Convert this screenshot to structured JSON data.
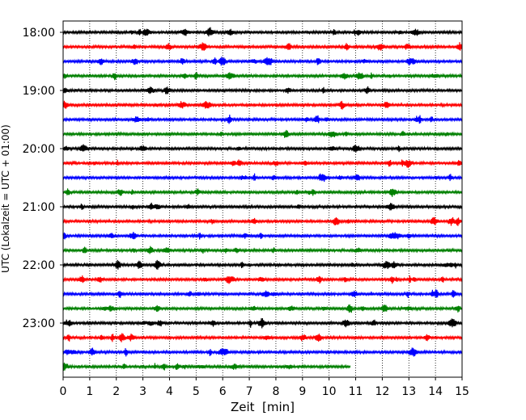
{
  "chart_data": {
    "type": "line",
    "title": "",
    "xlabel": "Zeit  [min]",
    "ylabel": "UTC (Lokalzeit = UTC + 01:00)",
    "xlim": [
      0,
      15
    ],
    "x_ticks": [
      "0",
      "1",
      "2",
      "3",
      "4",
      "5",
      "6",
      "7",
      "8",
      "9",
      "10",
      "11",
      "12",
      "13",
      "14",
      "15"
    ],
    "y_ticks": [
      "18:00",
      "19:00",
      "20:00",
      "21:00",
      "22:00",
      "23:00"
    ],
    "grid": "vertical dotted",
    "trace_interval_min": 15,
    "colors": [
      "#000000",
      "#ff0000",
      "#0000ff",
      "#008000"
    ],
    "series": [
      {
        "start": "18:00",
        "end_min": 15
      },
      {
        "start": "18:15",
        "end_min": 15
      },
      {
        "start": "18:30",
        "end_min": 15
      },
      {
        "start": "18:45",
        "end_min": 15
      },
      {
        "start": "19:00",
        "end_min": 15
      },
      {
        "start": "19:15",
        "end_min": 15
      },
      {
        "start": "19:30",
        "end_min": 15
      },
      {
        "start": "19:45",
        "end_min": 15
      },
      {
        "start": "20:00",
        "end_min": 15
      },
      {
        "start": "20:15",
        "end_min": 15
      },
      {
        "start": "20:30",
        "end_min": 15
      },
      {
        "start": "20:45",
        "end_min": 15
      },
      {
        "start": "21:00",
        "end_min": 15
      },
      {
        "start": "21:15",
        "end_min": 15
      },
      {
        "start": "21:30",
        "end_min": 15
      },
      {
        "start": "21:45",
        "end_min": 15
      },
      {
        "start": "22:00",
        "end_min": 15
      },
      {
        "start": "22:15",
        "end_min": 15
      },
      {
        "start": "22:30",
        "end_min": 15
      },
      {
        "start": "22:45",
        "end_min": 15
      },
      {
        "start": "23:00",
        "end_min": 15
      },
      {
        "start": "23:15",
        "end_min": 15
      },
      {
        "start": "23:30",
        "end_min": 15
      },
      {
        "start": "23:45",
        "end_min": 10.8
      }
    ]
  }
}
